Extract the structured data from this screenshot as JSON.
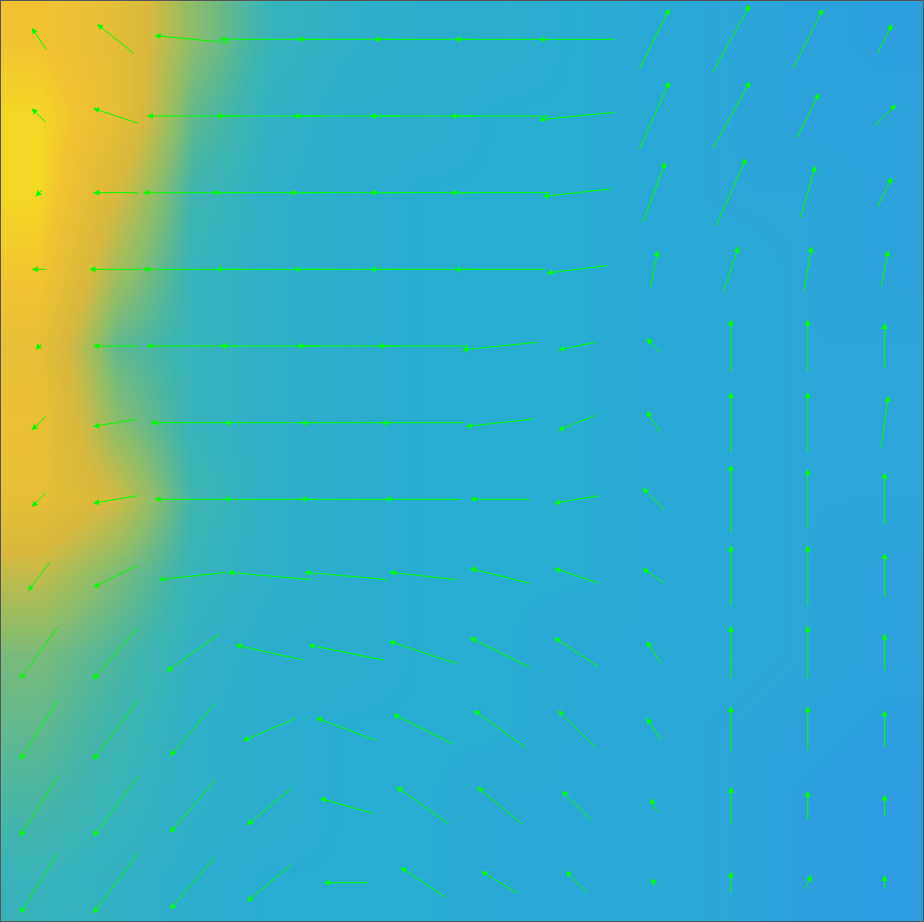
{
  "chart_data": {
    "type": "quiver",
    "xlim": [
      0,
      12
    ],
    "ylim": [
      12,
      0
    ],
    "tick_labels": false,
    "grid": false,
    "heatmap": {
      "x": [
        0.5,
        1.5,
        2.5,
        3.5,
        4.5,
        5.5,
        6.5,
        7.5,
        8.5,
        9.5,
        10.5,
        11.5
      ],
      "y": [
        0.5,
        1.5,
        2.5,
        3.5,
        4.5,
        5.5,
        6.5,
        7.5,
        8.5,
        9.5,
        10.5,
        11.5
      ],
      "z": [
        [
          0.8,
          0.7,
          0.45,
          0.3,
          0.27,
          0.26,
          0.26,
          0.25,
          0.24,
          0.23,
          0.22,
          0.21
        ],
        [
          0.88,
          0.72,
          0.38,
          0.28,
          0.26,
          0.26,
          0.25,
          0.25,
          0.24,
          0.23,
          0.22,
          0.22
        ],
        [
          0.88,
          0.6,
          0.32,
          0.27,
          0.26,
          0.25,
          0.25,
          0.25,
          0.24,
          0.23,
          0.23,
          0.22
        ],
        [
          0.82,
          0.5,
          0.3,
          0.27,
          0.26,
          0.25,
          0.25,
          0.25,
          0.24,
          0.24,
          0.23,
          0.22
        ],
        [
          0.72,
          0.38,
          0.3,
          0.27,
          0.26,
          0.25,
          0.25,
          0.25,
          0.24,
          0.24,
          0.23,
          0.23
        ],
        [
          0.75,
          0.45,
          0.3,
          0.27,
          0.26,
          0.25,
          0.25,
          0.25,
          0.24,
          0.24,
          0.23,
          0.23
        ],
        [
          0.72,
          0.58,
          0.32,
          0.27,
          0.26,
          0.25,
          0.25,
          0.25,
          0.24,
          0.24,
          0.23,
          0.23
        ],
        [
          0.55,
          0.42,
          0.3,
          0.27,
          0.26,
          0.25,
          0.25,
          0.25,
          0.24,
          0.24,
          0.23,
          0.22
        ],
        [
          0.42,
          0.35,
          0.28,
          0.26,
          0.26,
          0.25,
          0.25,
          0.24,
          0.24,
          0.24,
          0.23,
          0.22
        ],
        [
          0.38,
          0.32,
          0.27,
          0.26,
          0.25,
          0.25,
          0.25,
          0.24,
          0.24,
          0.23,
          0.22,
          0.21
        ],
        [
          0.34,
          0.3,
          0.27,
          0.26,
          0.25,
          0.25,
          0.24,
          0.24,
          0.24,
          0.23,
          0.21,
          0.2
        ],
        [
          0.3,
          0.28,
          0.26,
          0.25,
          0.25,
          0.25,
          0.24,
          0.24,
          0.24,
          0.23,
          0.21,
          0.2
        ]
      ],
      "color_range": [
        0,
        1
      ]
    },
    "vectors": {
      "color": "#00ff00",
      "x": [
        0.5,
        1.5,
        2.5,
        3.5,
        4.5,
        5.5,
        6.5,
        7.5,
        8.5,
        9.5,
        10.5,
        11.5
      ],
      "y": [
        0.5,
        1.5,
        2.5,
        3.5,
        4.5,
        5.5,
        6.5,
        7.5,
        8.5,
        9.5,
        10.5,
        11.5
      ],
      "u": [
        [
          -0.2,
          -0.5,
          -1.0,
          -1.3,
          -1.3,
          -1.3,
          -1.2,
          -1.0,
          0.4,
          0.5,
          0.4,
          0.2
        ],
        [
          -0.2,
          -0.6,
          -1.2,
          -1.4,
          -1.4,
          -1.4,
          -1.3,
          -1.0,
          0.4,
          0.5,
          0.3,
          0.3
        ],
        [
          -0.1,
          -0.6,
          -1.3,
          -1.5,
          -1.5,
          -1.4,
          -1.3,
          -0.9,
          0.3,
          0.4,
          0.2,
          0.2
        ],
        [
          -0.2,
          -0.7,
          -1.3,
          -1.4,
          -1.4,
          -1.4,
          -1.2,
          -0.8,
          0.1,
          0.2,
          0.1,
          0.1
        ],
        [
          -0.1,
          -0.6,
          -1.2,
          -1.3,
          -1.3,
          -1.2,
          -1.0,
          -0.5,
          -0.2,
          0,
          0,
          0
        ],
        [
          -0.2,
          -0.6,
          -1.1,
          -1.2,
          -1.2,
          -1.1,
          -0.9,
          -0.5,
          -0.2,
          0,
          0,
          0.1
        ],
        [
          -0.2,
          -0.6,
          -1.0,
          -1.2,
          -1.2,
          -1.0,
          -0.8,
          -0.6,
          -0.3,
          0,
          0,
          0
        ],
        [
          -0.3,
          -0.6,
          -0.9,
          -1.1,
          -1.1,
          -0.9,
          -0.8,
          -0.6,
          -0.3,
          0,
          0,
          0
        ],
        [
          -0.5,
          -0.6,
          -0.7,
          -0.9,
          -1.0,
          -0.9,
          -0.8,
          -0.6,
          -0.2,
          0,
          0,
          0
        ],
        [
          -0.5,
          -0.6,
          -0.6,
          -0.7,
          -0.8,
          -0.8,
          -0.7,
          -0.5,
          -0.2,
          0,
          0,
          0
        ],
        [
          -0.5,
          -0.6,
          -0.6,
          -0.6,
          -0.7,
          -0.7,
          -0.6,
          -0.4,
          -0.1,
          0,
          0,
          0
        ],
        [
          -0.5,
          -0.6,
          -0.6,
          -0.6,
          -0.6,
          -0.6,
          -0.5,
          -0.3,
          -0.1,
          0,
          0.1,
          0
        ]
      ],
      "v": [
        [
          -0.3,
          -0.4,
          -0.1,
          0,
          0,
          0,
          0,
          0,
          -0.8,
          -0.9,
          -0.8,
          -0.4
        ],
        [
          -0.2,
          -0.2,
          0,
          0,
          0,
          0,
          0,
          0.1,
          -0.9,
          -0.9,
          -0.6,
          -0.3
        ],
        [
          0.1,
          0,
          0,
          0,
          0,
          0,
          0,
          0.1,
          -0.8,
          -0.9,
          -0.7,
          -0.4
        ],
        [
          0,
          0,
          0,
          0,
          0,
          0,
          0,
          0.1,
          -0.5,
          -0.6,
          -0.6,
          -0.5
        ],
        [
          0.1,
          0,
          0,
          0,
          0,
          0,
          0.1,
          0.1,
          -0.2,
          -0.7,
          -0.7,
          -0.6
        ],
        [
          0.2,
          0.1,
          0,
          0,
          0,
          0,
          0.1,
          0.2,
          -0.3,
          -0.8,
          -0.8,
          -0.7
        ],
        [
          0.2,
          0.1,
          0,
          0,
          0,
          0,
          0,
          0.1,
          -0.3,
          -0.9,
          -0.8,
          -0.7
        ],
        [
          0.4,
          0.3,
          0.1,
          -0.1,
          -0.1,
          -0.1,
          -0.2,
          -0.2,
          -0.2,
          -0.8,
          -0.8,
          -0.6
        ],
        [
          0.7,
          0.7,
          0.5,
          -0.2,
          -0.2,
          -0.3,
          -0.4,
          -0.4,
          -0.3,
          -0.7,
          -0.7,
          -0.5
        ],
        [
          0.8,
          0.8,
          0.7,
          0.3,
          -0.3,
          -0.4,
          -0.5,
          -0.5,
          -0.3,
          -0.6,
          -0.6,
          -0.5
        ],
        [
          0.8,
          0.8,
          0.7,
          0.5,
          -0.2,
          -0.5,
          -0.5,
          -0.4,
          -0.2,
          -0.5,
          -0.4,
          -0.3
        ],
        [
          0.8,
          0.8,
          0.7,
          0.5,
          0,
          -0.4,
          -0.3,
          -0.3,
          -0.1,
          -0.3,
          -0.2,
          -0.2
        ]
      ]
    }
  }
}
